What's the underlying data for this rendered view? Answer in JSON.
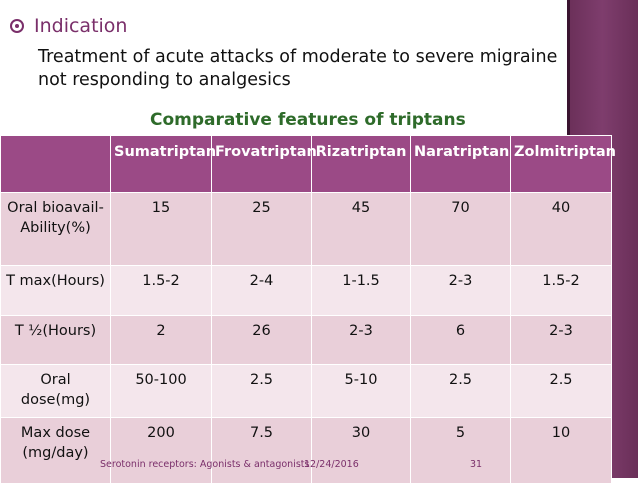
{
  "slide": {
    "bullet": "Indication",
    "body": "Treatment of acute attacks of moderate to severe migraine not responding to analgesics",
    "table_title": "Comparative features of triptans",
    "table": {
      "headers": [
        "",
        "Sumatriptan",
        "Frovatriptan",
        "Rizatriptan",
        "Naratriptan",
        "Zolmitriptan"
      ],
      "rows": [
        [
          "Oral bioavail-Ability(%)",
          "15",
          "25",
          "45",
          "70",
          "40"
        ],
        [
          "T max(Hours)",
          "1.5-2",
          "2-4",
          "1-1.5",
          "2-3",
          "1.5-2"
        ],
        [
          "T ½(Hours)",
          "2",
          "26",
          "2-3",
          "6",
          "2-3"
        ],
        [
          "Oral dose(mg)",
          "50-100",
          "2.5",
          "5-10",
          "2.5",
          "2.5"
        ],
        [
          "Max dose (mg/day)",
          "200",
          "7.5",
          "30",
          "5",
          "10"
        ]
      ]
    },
    "footer": {
      "left": "Serotonin receptors: Agonists & antagonists",
      "date": "12/24/2016",
      "page": "31"
    },
    "colors": {
      "accent": "#7a2f6a",
      "header_bg": "#9b4a86",
      "row_dark": "#e9cfd9",
      "row_light": "#f4e6ec",
      "title_green": "#2e6b2a",
      "side_band": "#6a2f58"
    },
    "icons": {
      "bullet": "radio-bullet-icon"
    }
  }
}
